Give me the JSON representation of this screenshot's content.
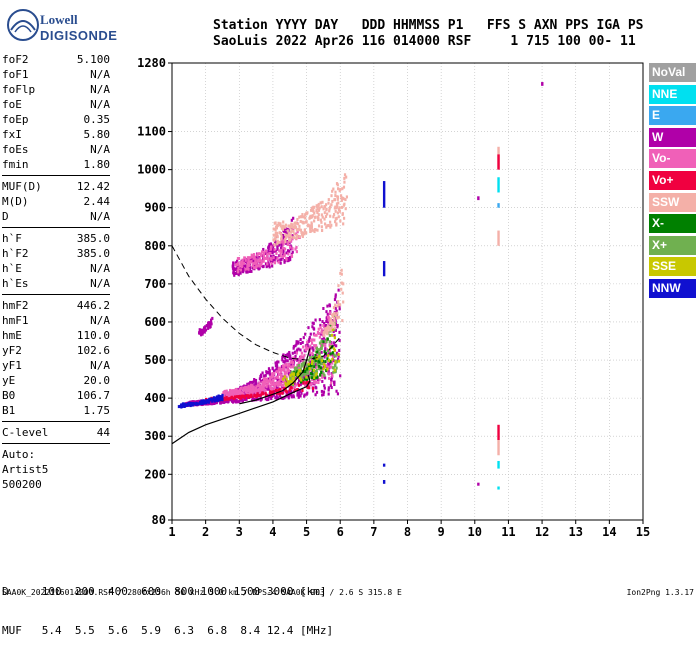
{
  "logo": {
    "line1": "Lowell",
    "line2": "DIGISONDE"
  },
  "header": {
    "line1": "Station YYYY DAY   DDD HHMMSS P1   FFS S AXN PPS IGA PS",
    "line2": "SaoLuis 2022 Apr26 116 014000 RSF     1 715 100 00- 11"
  },
  "params": {
    "group1": [
      {
        "name": "foF2",
        "value": "5.100"
      },
      {
        "name": "foF1",
        "value": "N/A"
      },
      {
        "name": "foFlp",
        "value": "N/A"
      },
      {
        "name": "foE",
        "value": "N/A"
      },
      {
        "name": "foEp",
        "value": "0.35"
      },
      {
        "name": "fxI",
        "value": "5.80"
      },
      {
        "name": "foEs",
        "value": "N/A"
      },
      {
        "name": "fmin",
        "value": "1.80"
      }
    ],
    "group2": [
      {
        "name": "MUF(D)",
        "value": "12.42"
      },
      {
        "name": "M(D)",
        "value": "2.44"
      },
      {
        "name": "D",
        "value": "N/A"
      }
    ],
    "group3": [
      {
        "name": "h`F",
        "value": "385.0"
      },
      {
        "name": "h`F2",
        "value": "385.0"
      },
      {
        "name": "h`E",
        "value": "N/A"
      },
      {
        "name": "h`Es",
        "value": "N/A"
      }
    ],
    "group4": [
      {
        "name": "hmF2",
        "value": "446.2"
      },
      {
        "name": "hmF1",
        "value": "N/A"
      },
      {
        "name": "hmE",
        "value": "110.0"
      },
      {
        "name": "yF2",
        "value": "102.6"
      },
      {
        "name": "yF1",
        "value": "N/A"
      },
      {
        "name": "yE",
        "value": "20.0"
      },
      {
        "name": "B0",
        "value": "106.7"
      },
      {
        "name": "B1",
        "value": "1.75"
      }
    ],
    "clevel": {
      "name": "C-level",
      "value": "44"
    },
    "auto": [
      "Auto:",
      "Artist5",
      "500200"
    ]
  },
  "legend": [
    {
      "label": "NoVal",
      "color": "#a0a0a0"
    },
    {
      "label": "NNE",
      "color": "#00e0f0"
    },
    {
      "label": "E",
      "color": "#3aa8f0"
    },
    {
      "label": "W",
      "color": "#b000a8"
    },
    {
      "label": "Vo-",
      "color": "#f060b8"
    },
    {
      "label": "Vo+",
      "color": "#f00040"
    },
    {
      "label": "SSW",
      "color": "#f4b0a8"
    },
    {
      "label": "X-",
      "color": "#008000"
    },
    {
      "label": "X+",
      "color": "#70b050"
    },
    {
      "label": "SSE",
      "color": "#c8c800"
    },
    {
      "label": "NNW",
      "color": "#1010d0"
    }
  ],
  "dmuf": {
    "d_line": "D     100  200  400  600  800 1000 1500 3000 [km]",
    "muf_line": "MUF   5.4  5.5  5.6  5.9  6.3  6.8  8.4 12.4 [MHz]"
  },
  "footer": {
    "left": "SAA0K_2022116014000.RSF / 280fx256h 50 kHz 5.0 km / DPS-4 SAA0K 903 / 2.6 S 315.8 E",
    "right": "Ion2Png 1.3.17"
  },
  "chart_data": {
    "type": "scatter",
    "xlim": [
      1,
      15
    ],
    "ylim": [
      80,
      1280
    ],
    "x_ticks": [
      "1",
      "2",
      "3",
      "4",
      "5",
      "6",
      "7",
      "8",
      "9",
      "10",
      "11",
      "12",
      "13",
      "14",
      "15"
    ],
    "y_ticks": [
      "80",
      "200",
      "300",
      "400",
      "500",
      "600",
      "700",
      "800",
      "900",
      "1000",
      "1100",
      "1280"
    ],
    "grid": true,
    "legend_position": "right",
    "clusters": [
      {
        "name": "W",
        "color": "#b000a8",
        "x0": 1.4,
        "x1": 6.0,
        "h_lo": [
          380,
          410
        ],
        "h_hi": [
          390,
          700
        ],
        "n": 900
      },
      {
        "name": "Vo-",
        "color": "#f060b8",
        "x0": 2.5,
        "x1": 5.8,
        "h_lo": [
          400,
          440
        ],
        "h_hi": [
          420,
          640
        ],
        "n": 420
      },
      {
        "name": "X+",
        "color": "#70b050",
        "x0": 4.5,
        "x1": 5.9,
        "h_lo": [
          430,
          470
        ],
        "h_hi": [
          480,
          640
        ],
        "n": 140
      },
      {
        "name": "X-",
        "color": "#008000",
        "x0": 4.6,
        "x1": 5.8,
        "h_lo": [
          430,
          470
        ],
        "h_hi": [
          470,
          620
        ],
        "n": 60
      },
      {
        "name": "SSE",
        "color": "#c8c800",
        "x0": 4.3,
        "x1": 6.0,
        "h_lo": [
          430,
          470
        ],
        "h_hi": [
          460,
          620
        ],
        "n": 60
      },
      {
        "name": "Vo+",
        "color": "#f00040",
        "x0": 2.0,
        "x1": 5.2,
        "h_lo": [
          390,
          420
        ],
        "h_hi": [
          400,
          450
        ],
        "n": 110
      },
      {
        "name": "NNW",
        "color": "#1010d0",
        "x0": 1.2,
        "x1": 2.5,
        "h_lo": [
          375,
          395
        ],
        "h_hi": [
          385,
          410
        ],
        "n": 110
      },
      {
        "name": "SSW",
        "color": "#f4b0a8",
        "x0": 5.5,
        "x1": 6.1,
        "h_lo": [
          560,
          600
        ],
        "h_hi": [
          580,
          800
        ],
        "n": 60
      },
      {
        "name": "W",
        "color": "#b000a8",
        "x0": 2.8,
        "x1": 4.6,
        "h_lo": [
          720,
          760
        ],
        "h_hi": [
          760,
          880
        ],
        "n": 260
      },
      {
        "name": "Vo-",
        "color": "#f060b8",
        "x0": 2.9,
        "x1": 4.8,
        "h_lo": [
          730,
          770
        ],
        "h_hi": [
          770,
          870
        ],
        "n": 140
      },
      {
        "name": "SSW",
        "color": "#f4b0a8",
        "x0": 4.0,
        "x1": 6.2,
        "h_lo": [
          800,
          860
        ],
        "h_hi": [
          860,
          1000
        ],
        "n": 260
      },
      {
        "name": "W",
        "color": "#b000a8",
        "x0": 1.8,
        "x1": 2.2,
        "h_lo": [
          560,
          590
        ],
        "h_hi": [
          580,
          620
        ],
        "n": 40
      }
    ],
    "vertical_traces": [
      {
        "name": "NNW",
        "color": "#1010d0",
        "x": 7.3,
        "h0": 720,
        "h1": 760
      },
      {
        "name": "NNW",
        "color": "#1010d0",
        "x": 7.3,
        "h0": 900,
        "h1": 970
      },
      {
        "name": "NNW",
        "color": "#1010d0",
        "x": 7.3,
        "h0": 175,
        "h1": 185
      },
      {
        "name": "NNW",
        "color": "#1010d0",
        "x": 7.3,
        "h0": 220,
        "h1": 228
      },
      {
        "name": "Vo+",
        "color": "#f00040",
        "x": 10.7,
        "h0": 290,
        "h1": 330
      },
      {
        "name": "SSW",
        "color": "#f4b0a8",
        "x": 10.7,
        "h0": 250,
        "h1": 290
      },
      {
        "name": "NNE",
        "color": "#00e0f0",
        "x": 10.7,
        "h0": 215,
        "h1": 235
      },
      {
        "name": "NNE",
        "color": "#00e0f0",
        "x": 10.7,
        "h0": 160,
        "h1": 168
      },
      {
        "name": "SSW",
        "color": "#f4b0a8",
        "x": 10.7,
        "h0": 1000,
        "h1": 1060
      },
      {
        "name": "Vo+",
        "color": "#f00040",
        "x": 10.7,
        "h0": 1000,
        "h1": 1040
      },
      {
        "name": "NNE",
        "color": "#00e0f0",
        "x": 10.7,
        "h0": 940,
        "h1": 980
      },
      {
        "name": "SSW",
        "color": "#f4b0a8",
        "x": 10.7,
        "h0": 800,
        "h1": 840
      },
      {
        "name": "E",
        "color": "#3aa8f0",
        "x": 10.7,
        "h0": 900,
        "h1": 912
      },
      {
        "name": "W",
        "color": "#b000a8",
        "x": 12.0,
        "h0": 1220,
        "h1": 1230
      },
      {
        "name": "W",
        "color": "#b000a8",
        "x": 10.1,
        "h0": 920,
        "h1": 930
      },
      {
        "name": "W",
        "color": "#b000a8",
        "x": 10.1,
        "h0": 170,
        "h1": 178
      }
    ],
    "profile_curve": {
      "x": [
        1.0,
        1.5,
        2.0,
        3.0,
        4.0,
        4.6,
        5.0,
        5.1,
        5.05
      ],
      "h": [
        280,
        310,
        330,
        360,
        390,
        415,
        430,
        445,
        460
      ]
    },
    "dashed_curve": {
      "x": [
        1.0,
        1.5,
        2.0,
        2.5,
        3.0,
        3.5,
        4.0,
        4.5,
        5.0,
        5.5,
        6.0
      ],
      "h": [
        800,
        720,
        660,
        610,
        570,
        540,
        520,
        505,
        500,
        510,
        560
      ]
    },
    "trace_curve": {
      "x": [
        3.0,
        3.5,
        4.0,
        4.3,
        4.6,
        4.9,
        5.0,
        5.1
      ],
      "h": [
        385,
        395,
        410,
        420,
        440,
        470,
        500,
        530
      ]
    }
  }
}
